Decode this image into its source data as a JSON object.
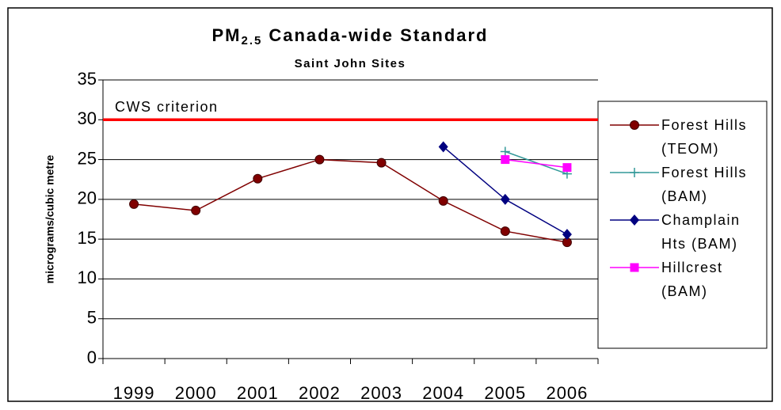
{
  "chart_data": {
    "type": "line",
    "title": {
      "prefix": "PM",
      "subscript": "2.5",
      "text": "Canada-wide Standard"
    },
    "subtitle": "Saint John Sites",
    "y_label": "micrograms/cubic metre",
    "categories": [
      "1999",
      "2000",
      "2001",
      "2002",
      "2003",
      "2004",
      "2005",
      "2006"
    ],
    "series": [
      {
        "name": "Forest Hills (TEOM)",
        "color": "#800000",
        "marker": "circle",
        "values": [
          19.4,
          18.6,
          22.6,
          25,
          24.6,
          19.8,
          16,
          14.6
        ]
      },
      {
        "name": "Forest Hills (BAM)",
        "color": "#339999",
        "marker": "plus",
        "values": [
          null,
          null,
          null,
          null,
          null,
          null,
          26,
          23.2
        ]
      },
      {
        "name": "Champlain Hts (BAM)",
        "color": "#000080",
        "marker": "diamond",
        "values": [
          null,
          null,
          null,
          null,
          null,
          26.6,
          20,
          15.6
        ]
      },
      {
        "name": "Hillcrest (BAM)",
        "color": "#ff00ff",
        "marker": "square",
        "values": [
          null,
          null,
          null,
          null,
          null,
          null,
          25,
          24
        ]
      }
    ],
    "reference_line": {
      "value": 30,
      "label": "CWS criterion",
      "color": "#ff0000"
    },
    "ylim": [
      0,
      35
    ],
    "yticks": [
      0,
      5,
      10,
      15,
      20,
      25,
      30,
      35
    ],
    "grid": true,
    "legend": "right"
  }
}
